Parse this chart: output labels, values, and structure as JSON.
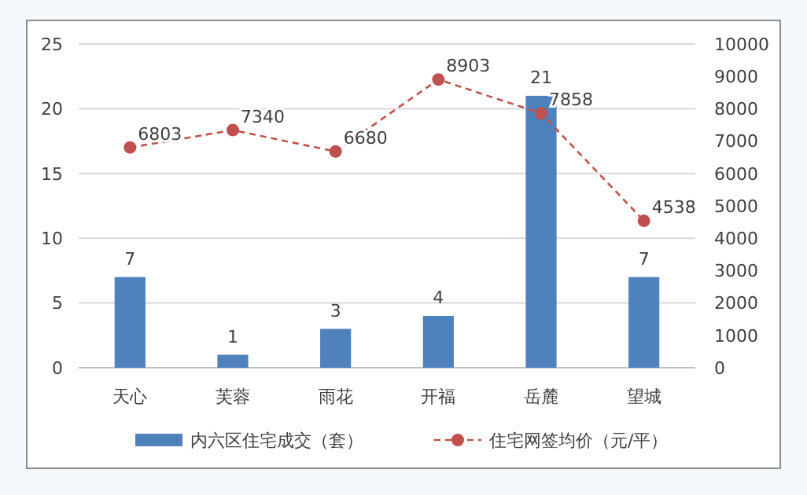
{
  "chart_data": {
    "type": "bar",
    "categories": [
      "天心",
      "芙蓉",
      "雨花",
      "开福",
      "岳麓",
      "望城"
    ],
    "series": [
      {
        "name": "内六区住宅成交（套）",
        "color": "#4f81bd",
        "values": [
          7,
          1,
          3,
          4,
          21,
          7
        ]
      },
      {
        "name": "住宅网签均价（元/平）",
        "type": "line",
        "axis": "y2",
        "color": "#c0504d",
        "line_style": "dashed",
        "marker": "circle",
        "values": [
          6803,
          7340,
          6680,
          8903,
          7858,
          4538
        ]
      }
    ],
    "ylim": [
      0,
      25
    ],
    "yticks": [
      0,
      5,
      10,
      15,
      20,
      25
    ],
    "y2lim": [
      0,
      10000
    ],
    "y2ticks": [
      0,
      1000,
      2000,
      3000,
      4000,
      5000,
      6000,
      7000,
      8000,
      9000,
      10000
    ],
    "grid": "y",
    "legend": "bottom",
    "data_labels": true
  }
}
